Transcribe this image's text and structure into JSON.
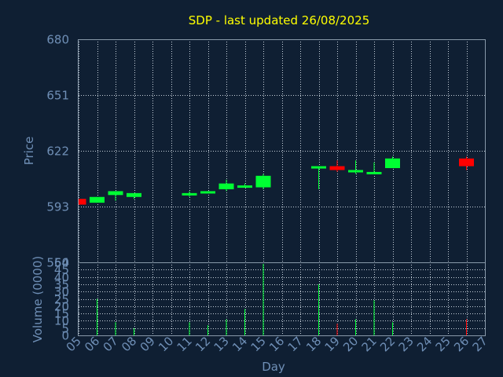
{
  "chart_data": [
    {
      "type": "candlestick",
      "title": "SDP - last updated 26/08/2025",
      "ylabel": "Price",
      "ylim": [
        564,
        680
      ],
      "yticks": [
        "680",
        "651",
        "622",
        "593",
        "564"
      ],
      "grid": true,
      "colors": {
        "up": "#00ff33",
        "down": "#ff0000"
      },
      "candles": [
        {
          "day": "05",
          "open": 597,
          "high": 597,
          "low": 594,
          "close": 594
        },
        {
          "day": "06",
          "open": 595,
          "high": 598,
          "low": 595,
          "close": 598
        },
        {
          "day": "07",
          "open": 599,
          "high": 601,
          "low": 596,
          "close": 601
        },
        {
          "day": "08",
          "open": 598,
          "high": 600,
          "low": 597,
          "close": 600
        },
        {
          "day": "11",
          "open": 599,
          "high": 601,
          "low": 598,
          "close": 600
        },
        {
          "day": "12",
          "open": 600,
          "high": 601,
          "low": 600,
          "close": 601
        },
        {
          "day": "13",
          "open": 602,
          "high": 607,
          "low": 601,
          "close": 605
        },
        {
          "day": "14",
          "open": 603,
          "high": 605,
          "low": 603,
          "close": 604
        },
        {
          "day": "15",
          "open": 603,
          "high": 610,
          "low": 602,
          "close": 609
        },
        {
          "day": "18",
          "open": 613,
          "high": 614,
          "low": 602,
          "close": 614
        },
        {
          "day": "19",
          "open": 614,
          "high": 617,
          "low": 611,
          "close": 612
        },
        {
          "day": "20",
          "open": 611,
          "high": 617,
          "low": 610,
          "close": 612
        },
        {
          "day": "21",
          "open": 610,
          "high": 616,
          "low": 610,
          "close": 611
        },
        {
          "day": "22",
          "open": 613,
          "high": 619,
          "low": 613,
          "close": 618
        },
        {
          "day": "26",
          "open": 618,
          "high": 619,
          "low": 612,
          "close": 614
        }
      ]
    },
    {
      "type": "bar",
      "ylabel": "Volume (0000)",
      "xlabel": "Day",
      "ylim": [
        0,
        50
      ],
      "yticks": [
        "50",
        "45",
        "40",
        "35",
        "30",
        "25",
        "20",
        "15",
        "10",
        "5",
        "0"
      ],
      "x_ticks": [
        "05",
        "06",
        "07",
        "08",
        "09",
        "10",
        "11",
        "12",
        "13",
        "14",
        "15",
        "16",
        "17",
        "18",
        "19",
        "20",
        "21",
        "22",
        "23",
        "24",
        "25",
        "26",
        "27"
      ],
      "values": [
        {
          "day": "06",
          "volume": 25,
          "color": "#00ff33"
        },
        {
          "day": "07",
          "volume": 9,
          "color": "#00ff33"
        },
        {
          "day": "08",
          "volume": 5,
          "color": "#00ff33"
        },
        {
          "day": "11",
          "volume": 9,
          "color": "#00ff33"
        },
        {
          "day": "12",
          "volume": 7,
          "color": "#00ff33"
        },
        {
          "day": "13",
          "volume": 11,
          "color": "#00ff33"
        },
        {
          "day": "14",
          "volume": 18,
          "color": "#00ff33"
        },
        {
          "day": "15",
          "volume": 49,
          "color": "#00ff33"
        },
        {
          "day": "18",
          "volume": 35,
          "color": "#00ff33"
        },
        {
          "day": "19",
          "volume": 8,
          "color": "#ff0000"
        },
        {
          "day": "20",
          "volume": 11,
          "color": "#00ff33"
        },
        {
          "day": "21",
          "volume": 24,
          "color": "#00ff33"
        },
        {
          "day": "22",
          "volume": 9,
          "color": "#00ff33"
        },
        {
          "day": "26",
          "volume": 11,
          "color": "#ff0000"
        }
      ]
    }
  ]
}
